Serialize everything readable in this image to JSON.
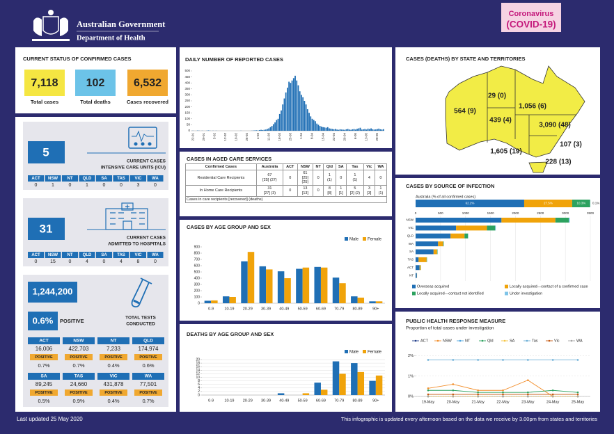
{
  "header": {
    "gov": "Australian Government",
    "dept": "Department of Health",
    "badge_line1": "Coronavirus",
    "badge_line2": "(COVID-19)"
  },
  "states": [
    "ACT",
    "NSW",
    "NT",
    "QLD",
    "SA",
    "TAS",
    "VIC",
    "WA"
  ],
  "status": {
    "title": "CURRENT STATUS OF CONFIRMED CASES",
    "items": [
      {
        "value": "7,118",
        "label": "Total cases",
        "color": "#f5e642"
      },
      {
        "value": "102",
        "label": "Total deaths",
        "color": "#6cc3e8"
      },
      {
        "value": "6,532",
        "label": "Cases recovered",
        "color": "#f0a830"
      }
    ]
  },
  "icu": {
    "value": "5",
    "label_lines": [
      "CURRENT CASES",
      "INTENSIVE CARE UNITS (ICU)"
    ],
    "counts": [
      "0",
      "1",
      "0",
      "1",
      "0",
      "0",
      "3",
      "0"
    ]
  },
  "hospitals": {
    "value": "31",
    "label_lines": [
      "CURRENT CASES",
      "ADMITTED TO HOSPITALS"
    ],
    "counts": [
      "0",
      "15",
      "0",
      "4",
      "0",
      "4",
      "8",
      "0"
    ]
  },
  "tests": {
    "total": "1,244,200",
    "positive_rate": "0.6%",
    "positive_word": "POSITIVE",
    "label_lines": [
      "TOTAL TESTS",
      "CONDUCTED"
    ],
    "by_state": [
      {
        "tests": "16,006",
        "rate": "0.7%"
      },
      {
        "tests": "422,703",
        "rate": "0.7%"
      },
      {
        "tests": "7,233",
        "rate": "0.4%"
      },
      {
        "tests": "174,974",
        "rate": "0.6%"
      },
      {
        "tests": "89,245",
        "rate": "0.5%"
      },
      {
        "tests": "24,660",
        "rate": "0.9%"
      },
      {
        "tests": "431,878",
        "rate": "0.4%"
      },
      {
        "tests": "77,501",
        "rate": "0.7%"
      }
    ]
  },
  "aged_care": {
    "title": "CASES IN AGED CARE SERVICES",
    "header": [
      "Confirmed Cases",
      "Australia",
      "ACT",
      "NSW",
      "NT",
      "Qld",
      "SA",
      "Tas",
      "Vic",
      "WA"
    ],
    "rows": [
      [
        "Residential Care Recipients",
        "67\n[25] (27)",
        "0",
        "61\n[25]\n(25)",
        "0",
        "1\n(1)",
        "0",
        "1\n(1)",
        "4",
        "0"
      ],
      [
        "In Home Care Recipients",
        "31\n[27] (3)",
        "0",
        "13\n[13]",
        "0",
        "8\n[8]",
        "1\n[1]",
        "5\n[2] (2)",
        "3\n[3]",
        "1\n(1)"
      ]
    ],
    "note": "Cases in care recipients [recovered] (deaths)"
  },
  "map": {
    "title": "CASES (DEATHS) BY STATE AND TERRITORIES",
    "labels": [
      "564 (9)",
      "29 (0)",
      "1,056 (6)",
      "439 (4)",
      "3,090 (48)",
      "107 (3)",
      "1,605 (19)",
      "228 (13)"
    ]
  },
  "footer": {
    "left": "Last updated 25 May 2020",
    "right": "This infographic is updated every afternoon based on the data we receive by 3.00pm from states and territories"
  },
  "chart_data": [
    {
      "type": "bar",
      "title": "DAILY NUMBER OF REPORTED CASES",
      "color": "#1f6fb5",
      "grid": false,
      "ylim": [
        0,
        500
      ],
      "yticks": [
        0,
        50,
        100,
        150,
        200,
        250,
        300,
        350,
        400,
        450,
        500
      ],
      "categories": [
        "22-01",
        null,
        null,
        null,
        null,
        null,
        null,
        "29-01",
        null,
        null,
        null,
        null,
        null,
        null,
        "5-02",
        null,
        null,
        null,
        null,
        null,
        null,
        "12-02",
        null,
        null,
        null,
        null,
        null,
        null,
        "19-02",
        null,
        null,
        null,
        null,
        null,
        null,
        "26-02",
        null,
        null,
        null,
        null,
        null,
        null,
        "4-03",
        null,
        null,
        null,
        null,
        null,
        null,
        "11-03",
        null,
        null,
        null,
        null,
        null,
        null,
        "18-03",
        null,
        null,
        null,
        null,
        null,
        null,
        "25-03",
        null,
        null,
        null,
        null,
        null,
        null,
        "1-04",
        null,
        null,
        null,
        null,
        null,
        null,
        "8-04",
        null,
        null,
        null,
        null,
        null,
        null,
        "15-04",
        null,
        null,
        null,
        null,
        null,
        null,
        "22-04",
        null,
        null,
        null,
        null,
        null,
        null,
        "29-04",
        null,
        null,
        null,
        null,
        null,
        null,
        "6-05",
        null,
        null,
        null,
        null,
        null,
        null,
        "13-05",
        null,
        null,
        null,
        null,
        null,
        null,
        "20-05",
        null,
        null,
        null,
        null
      ],
      "values": [
        1,
        0,
        0,
        2,
        1,
        0,
        1,
        0,
        0,
        1,
        3,
        1,
        0,
        1,
        0,
        1,
        0,
        0,
        0,
        0,
        0,
        0,
        0,
        0,
        0,
        0,
        0,
        0,
        0,
        0,
        0,
        1,
        0,
        0,
        0,
        0,
        0,
        0,
        1,
        2,
        3,
        4,
        2,
        6,
        8,
        6,
        8,
        10,
        15,
        20,
        30,
        40,
        55,
        70,
        90,
        100,
        140,
        170,
        220,
        270,
        320,
        360,
        410,
        400,
        420,
        440,
        460,
        420,
        380,
        330,
        300,
        280,
        250,
        220,
        180,
        150,
        120,
        100,
        90,
        80,
        60,
        50,
        40,
        35,
        30,
        28,
        25,
        30,
        20,
        18,
        15,
        12,
        15,
        10,
        8,
        12,
        10,
        9,
        8,
        12,
        15,
        10,
        8,
        12,
        14,
        10,
        16,
        20,
        25,
        10,
        12,
        15,
        10,
        18,
        14,
        20,
        12,
        10,
        11,
        14,
        18,
        12,
        10,
        13
      ]
    },
    {
      "type": "grouped-bar",
      "title": "CASES BY AGE GROUP AND SEX",
      "grid": false,
      "categories": [
        "0-9",
        "10-19",
        "20-29",
        "30-39",
        "40-49",
        "50-59",
        "60-69",
        "70-79",
        "80-89",
        "90+"
      ],
      "ylim": [
        0,
        900
      ],
      "yticks": [
        0,
        100,
        200,
        300,
        400,
        500,
        600,
        700,
        800,
        900
      ],
      "series": [
        {
          "name": "Male",
          "color": "#1f6fb5",
          "values": [
            40,
            110,
            670,
            590,
            510,
            550,
            580,
            410,
            110,
            30
          ]
        },
        {
          "name": "Female",
          "color": "#f0a30a",
          "values": [
            45,
            100,
            820,
            540,
            400,
            570,
            570,
            320,
            90,
            30
          ]
        }
      ]
    },
    {
      "type": "grouped-bar",
      "title": "DEATHS BY AGE GROUP AND SEX",
      "grid": true,
      "categories": [
        "0-9",
        "10-19",
        "20-29",
        "30-39",
        "40-49",
        "50-59",
        "60-69",
        "70-79",
        "80-89",
        "90+"
      ],
      "ylim": [
        0,
        20
      ],
      "yticks": [
        0,
        2,
        4,
        6,
        8,
        10,
        12,
        14,
        16,
        18,
        20
      ],
      "series": [
        {
          "name": "Male",
          "color": "#1f6fb5",
          "values": [
            0,
            0,
            0,
            0,
            1,
            0,
            7,
            19,
            18,
            8
          ]
        },
        {
          "name": "Female",
          "color": "#f0a30a",
          "values": [
            0,
            0,
            0,
            0,
            0,
            1,
            3,
            12,
            13,
            11
          ]
        }
      ]
    },
    {
      "type": "stacked-hbar",
      "title": "CASES BY SOURCE OF INFECTION",
      "grid": true,
      "australia": {
        "label": "Australia (% of all confirmed cases)",
        "values": [
          62.2,
          27.5,
          10.3,
          0.1
        ],
        "value_labels": [
          "62.2%",
          "27.5%",
          "10.3%",
          "0.1%"
        ]
      },
      "categories": [
        "NSW",
        "VIC",
        "QLD",
        "WA",
        "SA",
        "TAS",
        "ACT",
        "NT"
      ],
      "xlim": [
        0,
        3500
      ],
      "xticks": [
        0,
        500,
        1000,
        1500,
        2000,
        2500,
        3000,
        3500
      ],
      "series": [
        {
          "name": "Overseas acquired",
          "color": "#1f6fb5",
          "values": [
            1720,
            810,
            700,
            450,
            360,
            60,
            80,
            26
          ]
        },
        {
          "name": "Locally acquired—contact of a confirmed case",
          "color": "#f0a30a",
          "values": [
            1080,
            620,
            280,
            100,
            70,
            160,
            22,
            3
          ]
        },
        {
          "name": "Locally acquired—contact not identified",
          "color": "#2ca25f",
          "values": [
            270,
            165,
            70,
            12,
            9,
            8,
            5,
            0
          ]
        },
        {
          "name": "Under investigation",
          "color": "#7fc4e8",
          "values": [
            20,
            10,
            6,
            2,
            0,
            0,
            0,
            0
          ]
        }
      ]
    },
    {
      "type": "line",
      "title": "PUBLIC HEALTH RESPONSE MEASURE",
      "subtitle": "Proportion of total cases under investigation",
      "grid": true,
      "categories": [
        "19-May",
        "20-May",
        "21-May",
        "22-May",
        "23-May",
        "24-May",
        "25-May"
      ],
      "ylim": [
        0,
        2.5
      ],
      "yticks": [
        {
          "value": 0,
          "label": "0%"
        },
        {
          "value": 1,
          "label": "1%"
        },
        {
          "value": 2,
          "label": "2%"
        }
      ],
      "series": [
        {
          "name": "ACT",
          "color": "#1f3c88",
          "values": [
            0,
            0,
            0,
            0,
            0,
            0,
            0
          ]
        },
        {
          "name": "NSW",
          "color": "#f28e2b",
          "values": [
            0.4,
            0.6,
            0.3,
            0.3,
            0.8,
            0,
            0
          ]
        },
        {
          "name": "NT",
          "color": "#4aa3df",
          "values": [
            0,
            0,
            0,
            0,
            0,
            0,
            0
          ]
        },
        {
          "name": "Qld",
          "color": "#2ca25f",
          "values": [
            0.3,
            0.3,
            0.2,
            0.2,
            0.2,
            0.3,
            0.2
          ]
        },
        {
          "name": "SA",
          "color": "#f5c542",
          "values": [
            0,
            0,
            0,
            0,
            0,
            0,
            0
          ]
        },
        {
          "name": "Tas",
          "color": "#6baed6",
          "values": [
            1.8,
            1.8,
            1.8,
            1.8,
            1.8,
            1.8,
            1.8
          ]
        },
        {
          "name": "Vic",
          "color": "#c55a11",
          "values": [
            0.1,
            0.1,
            0.1,
            0.1,
            0.1,
            0.1,
            0.1
          ]
        },
        {
          "name": "WA",
          "color": "#a5a5a5",
          "values": [
            0,
            0,
            0,
            0,
            0,
            0,
            0
          ]
        }
      ]
    }
  ]
}
